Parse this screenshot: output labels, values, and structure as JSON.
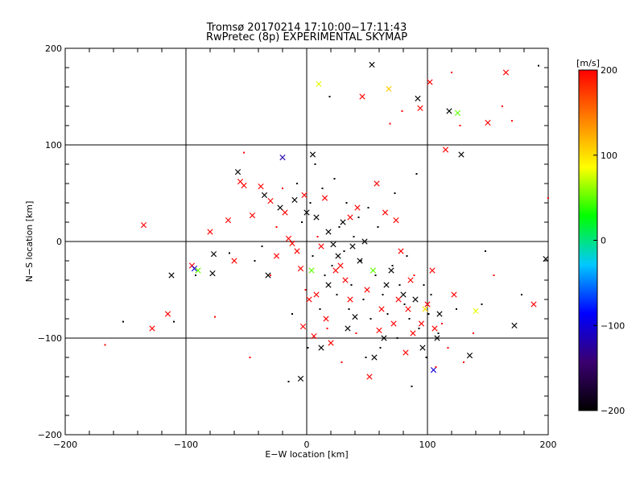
{
  "chart_data": {
    "type": "scatter",
    "title": "Tromsø 20170214 17:10:00−17:11:43",
    "subtitle": "RwPretec (8p) EXPERIMENTAL SKYMAP",
    "xlabel": "E−W location [km]",
    "ylabel": "N−S location [km]",
    "xlim": [
      -200,
      200
    ],
    "ylim": [
      -200,
      200
    ],
    "xticks": [
      -200,
      -100,
      0,
      100,
      200
    ],
    "yticks": [
      -200,
      -100,
      0,
      100,
      200
    ],
    "xtick_labels": [
      "−200",
      "−100",
      "0",
      "100",
      "200"
    ],
    "ytick_labels": [
      "−200",
      "−100",
      "0",
      "100",
      "200"
    ],
    "grid": true,
    "colorbar": {
      "label": "[m/s]",
      "range": [
        -200,
        200
      ],
      "ticks": [
        -200,
        -100,
        0,
        100,
        200
      ],
      "tick_labels": [
        "−200",
        "−100",
        "0",
        "100",
        "200"
      ],
      "stops": [
        "#000000",
        "#3a0070",
        "#0000ff",
        "#00c8ff",
        "#00ff00",
        "#ffff00",
        "#ff8000",
        "#ff0000"
      ]
    },
    "points": [
      [
        -135,
        17,
        200,
        "x"
      ],
      [
        -128,
        -90,
        200,
        "x"
      ],
      [
        -115,
        -75,
        200,
        "x"
      ],
      [
        -112,
        -35,
        -200,
        "x"
      ],
      [
        -95,
        -25,
        200,
        "x"
      ],
      [
        -93,
        -28,
        -100,
        "x"
      ],
      [
        -90,
        -30,
        50,
        "x"
      ],
      [
        -80,
        10,
        200,
        "x"
      ],
      [
        -78,
        -33,
        -200,
        "x"
      ],
      [
        -77,
        -13,
        -200,
        "x"
      ],
      [
        -65,
        22,
        200,
        "x"
      ],
      [
        -60,
        -20,
        200,
        "x"
      ],
      [
        -57,
        72,
        -200,
        "x"
      ],
      [
        -55,
        62,
        200,
        "x"
      ],
      [
        -52,
        58,
        200,
        "x"
      ],
      [
        -45,
        27,
        200,
        "x"
      ],
      [
        -38,
        57,
        200,
        "x"
      ],
      [
        -35,
        48,
        -200,
        "x"
      ],
      [
        -32,
        -35,
        -200,
        "x"
      ],
      [
        -30,
        42,
        200,
        "x"
      ],
      [
        -25,
        -15,
        200,
        "x"
      ],
      [
        -22,
        35,
        -200,
        "x"
      ],
      [
        -20,
        87,
        -120,
        "x"
      ],
      [
        -18,
        30,
        200,
        "x"
      ],
      [
        -15,
        3,
        200,
        "x"
      ],
      [
        -12,
        -2,
        200,
        "x"
      ],
      [
        -10,
        43,
        -200,
        "x"
      ],
      [
        -8,
        -10,
        200,
        "x"
      ],
      [
        -5,
        -142,
        -200,
        "x"
      ],
      [
        -5,
        -28,
        200,
        "x"
      ],
      [
        -3,
        -88,
        200,
        "x"
      ],
      [
        -2,
        48,
        200,
        "x"
      ],
      [
        0,
        30,
        -200,
        "x"
      ],
      [
        2,
        -60,
        200,
        "x"
      ],
      [
        4,
        -30,
        50,
        "x"
      ],
      [
        5,
        90,
        -200,
        "x"
      ],
      [
        6,
        -98,
        200,
        "x"
      ],
      [
        8,
        -55,
        200,
        "x"
      ],
      [
        8,
        25,
        -200,
        "x"
      ],
      [
        10,
        163,
        80,
        "x"
      ],
      [
        12,
        -5,
        200,
        "x"
      ],
      [
        12,
        -110,
        -200,
        "x"
      ],
      [
        15,
        45,
        200,
        "x"
      ],
      [
        16,
        -80,
        200,
        "x"
      ],
      [
        18,
        -45,
        -200,
        "x"
      ],
      [
        18,
        10,
        -200,
        "x"
      ],
      [
        20,
        -105,
        200,
        "x"
      ],
      [
        22,
        -3,
        -200,
        "x"
      ],
      [
        24,
        -30,
        200,
        "x"
      ],
      [
        26,
        -15,
        -200,
        "x"
      ],
      [
        28,
        -25,
        200,
        "x"
      ],
      [
        30,
        20,
        -200,
        "x"
      ],
      [
        32,
        -40,
        200,
        "x"
      ],
      [
        34,
        -90,
        -200,
        "x"
      ],
      [
        36,
        -60,
        200,
        "x"
      ],
      [
        36,
        25,
        200,
        "x"
      ],
      [
        38,
        -5,
        -200,
        "x"
      ],
      [
        40,
        -78,
        -200,
        "x"
      ],
      [
        42,
        35,
        200,
        "x"
      ],
      [
        44,
        -20,
        -200,
        "x"
      ],
      [
        46,
        150,
        200,
        "x"
      ],
      [
        48,
        0,
        -200,
        "x"
      ],
      [
        50,
        -50,
        200,
        "x"
      ],
      [
        52,
        -140,
        200,
        "x"
      ],
      [
        54,
        183,
        -200,
        "x"
      ],
      [
        55,
        -30,
        50,
        "x"
      ],
      [
        56,
        -120,
        -200,
        "x"
      ],
      [
        58,
        60,
        200,
        "x"
      ],
      [
        60,
        -92,
        200,
        "x"
      ],
      [
        62,
        -70,
        200,
        "x"
      ],
      [
        64,
        -100,
        -200,
        "x"
      ],
      [
        65,
        30,
        200,
        "x"
      ],
      [
        66,
        -45,
        -200,
        "x"
      ],
      [
        68,
        158,
        110,
        "x"
      ],
      [
        70,
        -30,
        -200,
        "x"
      ],
      [
        72,
        -85,
        200,
        "x"
      ],
      [
        74,
        22,
        200,
        "x"
      ],
      [
        76,
        -60,
        200,
        "x"
      ],
      [
        78,
        -10,
        200,
        "x"
      ],
      [
        80,
        -55,
        -200,
        "x"
      ],
      [
        82,
        -115,
        200,
        "x"
      ],
      [
        84,
        -70,
        200,
        "x"
      ],
      [
        86,
        -40,
        200,
        "x"
      ],
      [
        88,
        -95,
        200,
        "x"
      ],
      [
        90,
        -60,
        -200,
        "x"
      ],
      [
        92,
        148,
        -200,
        "x"
      ],
      [
        94,
        138,
        200,
        "x"
      ],
      [
        95,
        -85,
        200,
        "x"
      ],
      [
        96,
        -110,
        -200,
        "x"
      ],
      [
        98,
        -70,
        100,
        "x"
      ],
      [
        100,
        -65,
        200,
        "x"
      ],
      [
        102,
        165,
        200,
        "x"
      ],
      [
        104,
        -30,
        200,
        "x"
      ],
      [
        105,
        -133,
        -100,
        "x"
      ],
      [
        106,
        -90,
        200,
        "x"
      ],
      [
        108,
        -100,
        -200,
        "x"
      ],
      [
        110,
        -75,
        -200,
        "x"
      ],
      [
        115,
        95,
        200,
        "x"
      ],
      [
        118,
        135,
        -200,
        "x"
      ],
      [
        122,
        -55,
        200,
        "x"
      ],
      [
        125,
        133,
        50,
        "x"
      ],
      [
        128,
        90,
        -200,
        "x"
      ],
      [
        135,
        -118,
        -200,
        "x"
      ],
      [
        140,
        -72,
        80,
        "x"
      ],
      [
        150,
        123,
        200,
        "x"
      ],
      [
        165,
        175,
        200,
        "x"
      ],
      [
        172,
        -87,
        -200,
        "x"
      ],
      [
        188,
        -65,
        200,
        "x"
      ],
      [
        198,
        -18,
        -200,
        "x"
      ],
      [
        -167,
        -107,
        200,
        "d"
      ],
      [
        -152,
        -83,
        -200,
        "d"
      ],
      [
        -110,
        -83,
        -200,
        "d"
      ],
      [
        -92,
        -35,
        -200,
        "d"
      ],
      [
        -76,
        -78,
        200,
        "d"
      ],
      [
        -64,
        -12,
        -200,
        "d"
      ],
      [
        -52,
        92,
        200,
        "d"
      ],
      [
        -47,
        -120,
        200,
        "d"
      ],
      [
        -43,
        -20,
        -200,
        "d"
      ],
      [
        -37,
        -5,
        -200,
        "d"
      ],
      [
        -30,
        -35,
        200,
        "d"
      ],
      [
        -25,
        15,
        200,
        "d"
      ],
      [
        -20,
        55,
        200,
        "d"
      ],
      [
        -15,
        -145,
        -200,
        "d"
      ],
      [
        -12,
        -75,
        -200,
        "d"
      ],
      [
        -8,
        60,
        -200,
        "d"
      ],
      [
        -4,
        20,
        -200,
        "d"
      ],
      [
        -1,
        -50,
        200,
        "d"
      ],
      [
        1,
        -110,
        -200,
        "d"
      ],
      [
        3,
        40,
        -200,
        "d"
      ],
      [
        5,
        -15,
        -200,
        "d"
      ],
      [
        7,
        80,
        -200,
        "d"
      ],
      [
        9,
        5,
        200,
        "d"
      ],
      [
        11,
        -70,
        -200,
        "d"
      ],
      [
        13,
        55,
        -200,
        "d"
      ],
      [
        15,
        -35,
        -200,
        "d"
      ],
      [
        17,
        -90,
        200,
        "d"
      ],
      [
        19,
        150,
        -200,
        "d"
      ],
      [
        21,
        -25,
        -200,
        "d"
      ],
      [
        23,
        65,
        -200,
        "d"
      ],
      [
        25,
        -55,
        -200,
        "d"
      ],
      [
        27,
        15,
        -200,
        "d"
      ],
      [
        29,
        -125,
        200,
        "d"
      ],
      [
        31,
        -10,
        -200,
        "d"
      ],
      [
        33,
        40,
        -200,
        "d"
      ],
      [
        35,
        -70,
        -200,
        "d"
      ],
      [
        37,
        -45,
        -200,
        "d"
      ],
      [
        39,
        5,
        -200,
        "d"
      ],
      [
        41,
        -95,
        200,
        "d"
      ],
      [
        43,
        25,
        -200,
        "d"
      ],
      [
        45,
        -20,
        -200,
        "d"
      ],
      [
        47,
        -60,
        -200,
        "d"
      ],
      [
        49,
        -120,
        -200,
        "d"
      ],
      [
        51,
        35,
        -200,
        "d"
      ],
      [
        53,
        -80,
        -200,
        "d"
      ],
      [
        57,
        -35,
        -200,
        "d"
      ],
      [
        59,
        15,
        -200,
        "d"
      ],
      [
        61,
        -110,
        -200,
        "d"
      ],
      [
        63,
        -55,
        -200,
        "d"
      ],
      [
        67,
        -75,
        -200,
        "d"
      ],
      [
        69,
        122,
        200,
        "d"
      ],
      [
        71,
        -25,
        -200,
        "d"
      ],
      [
        73,
        50,
        -200,
        "d"
      ],
      [
        75,
        -100,
        -200,
        "d"
      ],
      [
        77,
        -45,
        -200,
        "d"
      ],
      [
        79,
        135,
        200,
        "d"
      ],
      [
        81,
        -65,
        -200,
        "d"
      ],
      [
        83,
        -15,
        -200,
        "d"
      ],
      [
        85,
        -80,
        -200,
        "d"
      ],
      [
        87,
        -150,
        -200,
        "d"
      ],
      [
        89,
        -35,
        200,
        "d"
      ],
      [
        91,
        70,
        -200,
        "d"
      ],
      [
        93,
        -90,
        -200,
        "d"
      ],
      [
        97,
        -45,
        -200,
        "d"
      ],
      [
        99,
        -120,
        -200,
        "d"
      ],
      [
        101,
        -75,
        -200,
        "d"
      ],
      [
        103,
        -55,
        -200,
        "d"
      ],
      [
        107,
        -130,
        200,
        "d"
      ],
      [
        109,
        -95,
        -200,
        "d"
      ],
      [
        112,
        -85,
        200,
        "d"
      ],
      [
        117,
        -110,
        200,
        "d"
      ],
      [
        120,
        175,
        200,
        "d"
      ],
      [
        124,
        -70,
        -200,
        "d"
      ],
      [
        127,
        120,
        200,
        "d"
      ],
      [
        130,
        -125,
        200,
        "d"
      ],
      [
        138,
        -95,
        200,
        "d"
      ],
      [
        145,
        -65,
        -200,
        "d"
      ],
      [
        148,
        -10,
        -200,
        "d"
      ],
      [
        155,
        -35,
        200,
        "d"
      ],
      [
        162,
        140,
        200,
        "d"
      ],
      [
        170,
        125,
        200,
        "d"
      ],
      [
        178,
        -55,
        -200,
        "d"
      ],
      [
        192,
        182,
        -200,
        "d"
      ],
      [
        200,
        45,
        200,
        "d"
      ]
    ]
  }
}
